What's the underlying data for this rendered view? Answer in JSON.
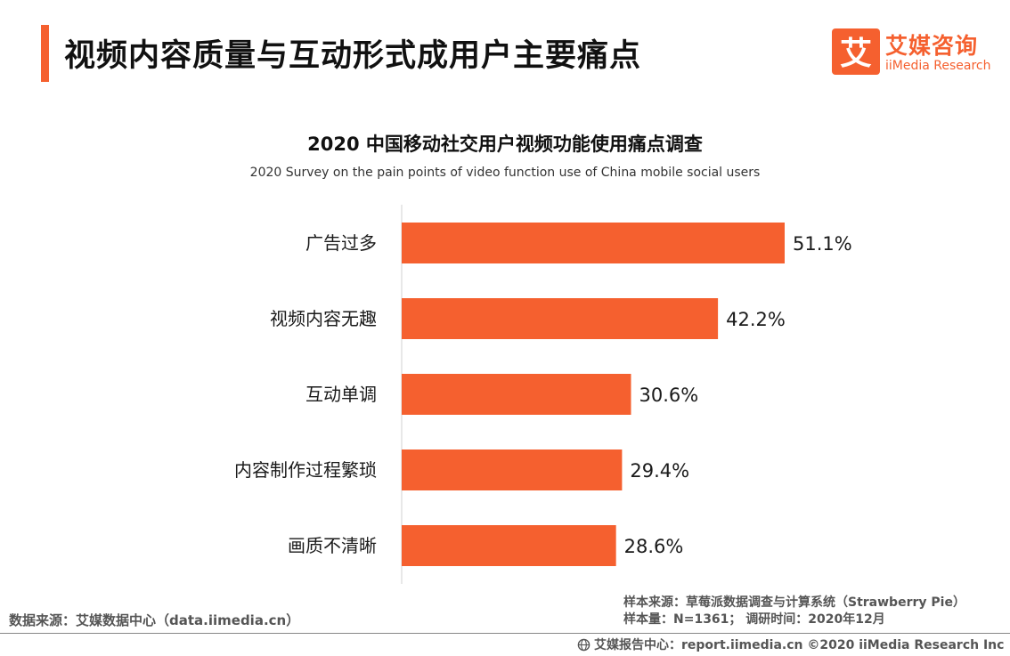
{
  "header": {
    "title": "视频内容质量与互动形式成用户主要痛点"
  },
  "logo": {
    "mark": "艾",
    "name_cn": "艾媒咨询",
    "name_en": "iiMedia Research"
  },
  "chart_data": {
    "type": "bar",
    "orientation": "horizontal",
    "title": "2020 中国移动社交用户视频功能使用痛点调查",
    "subtitle": "2020 Survey on the pain points of video function use of China mobile social users",
    "categories": [
      "广告过多",
      "视频内容无趣",
      "互动单调",
      "内容制作过程繁琐",
      "画质不清晰"
    ],
    "values": [
      51.1,
      42.2,
      30.6,
      29.4,
      28.6
    ],
    "value_labels": [
      "51.1%",
      "42.2%",
      "30.6%",
      "29.4%",
      "28.6%"
    ],
    "unit": "%",
    "bar_color": "#f5602f",
    "grid": false,
    "legend": "none"
  },
  "footer": {
    "data_source": "数据来源：艾媒数据中心（data.iimedia.cn）",
    "sample_source": "样本来源：草莓派数据调查与计算系统（Strawberry Pie）",
    "sample_info": "样本量：N=1361；  调研时间：2020年12月",
    "copyright": "艾媒报告中心：report.iimedia.cn   ©2020  iiMedia Research  Inc"
  },
  "colors": {
    "accent": "#f5602f",
    "text": "#1a1a1a",
    "muted": "#555555"
  }
}
